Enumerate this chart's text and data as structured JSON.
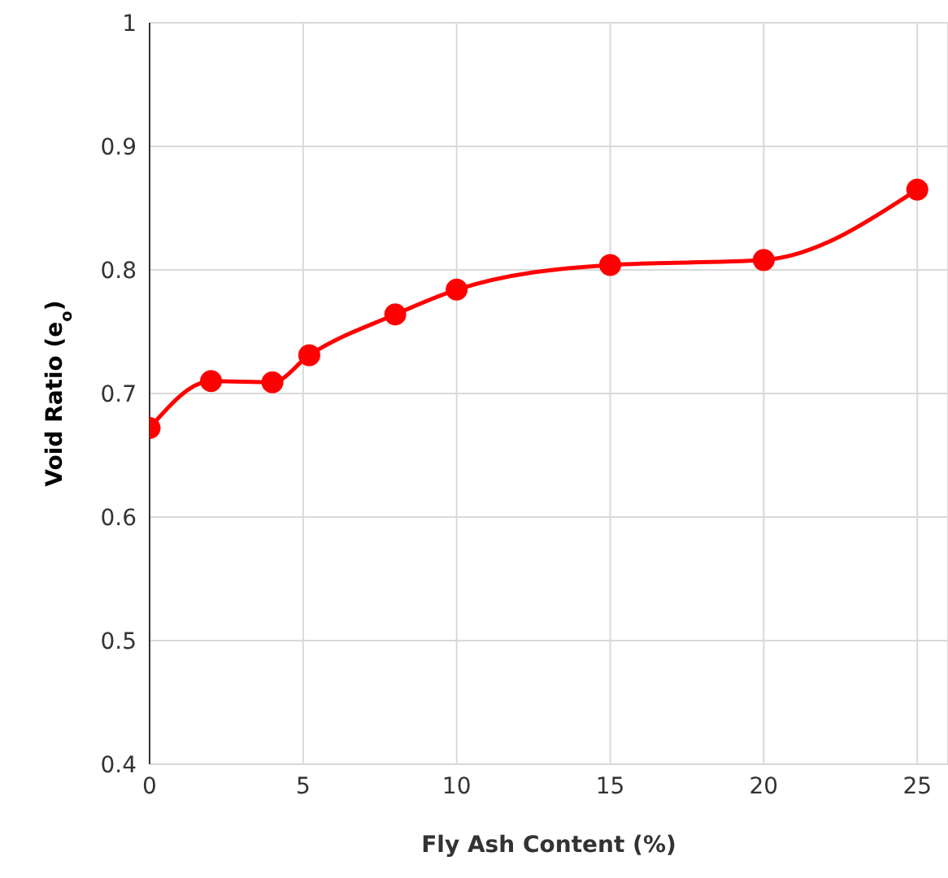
{
  "chart_data": {
    "type": "line",
    "xlabel": "Fly Ash Content (%)",
    "ylabel": "Void Ratio (e$_{o}$)",
    "x": [
      0,
      2,
      4,
      5.2,
      8,
      10,
      15,
      20,
      25
    ],
    "series": [
      {
        "color": "#ff0000",
        "values": [
          0.672,
          0.71,
          0.709,
          0.731,
          0.764,
          0.784,
          0.804,
          0.808,
          0.865
        ]
      }
    ],
    "xlim": [
      0,
      26
    ],
    "xticks": [
      0,
      5,
      10,
      15,
      20,
      25
    ],
    "ylim": [
      0.4,
      1
    ],
    "yticks": [
      0.4,
      0.5,
      0.6,
      0.7,
      0.8,
      0.9,
      1
    ],
    "grid": true,
    "marker": "circle",
    "line_style": "solid"
  }
}
